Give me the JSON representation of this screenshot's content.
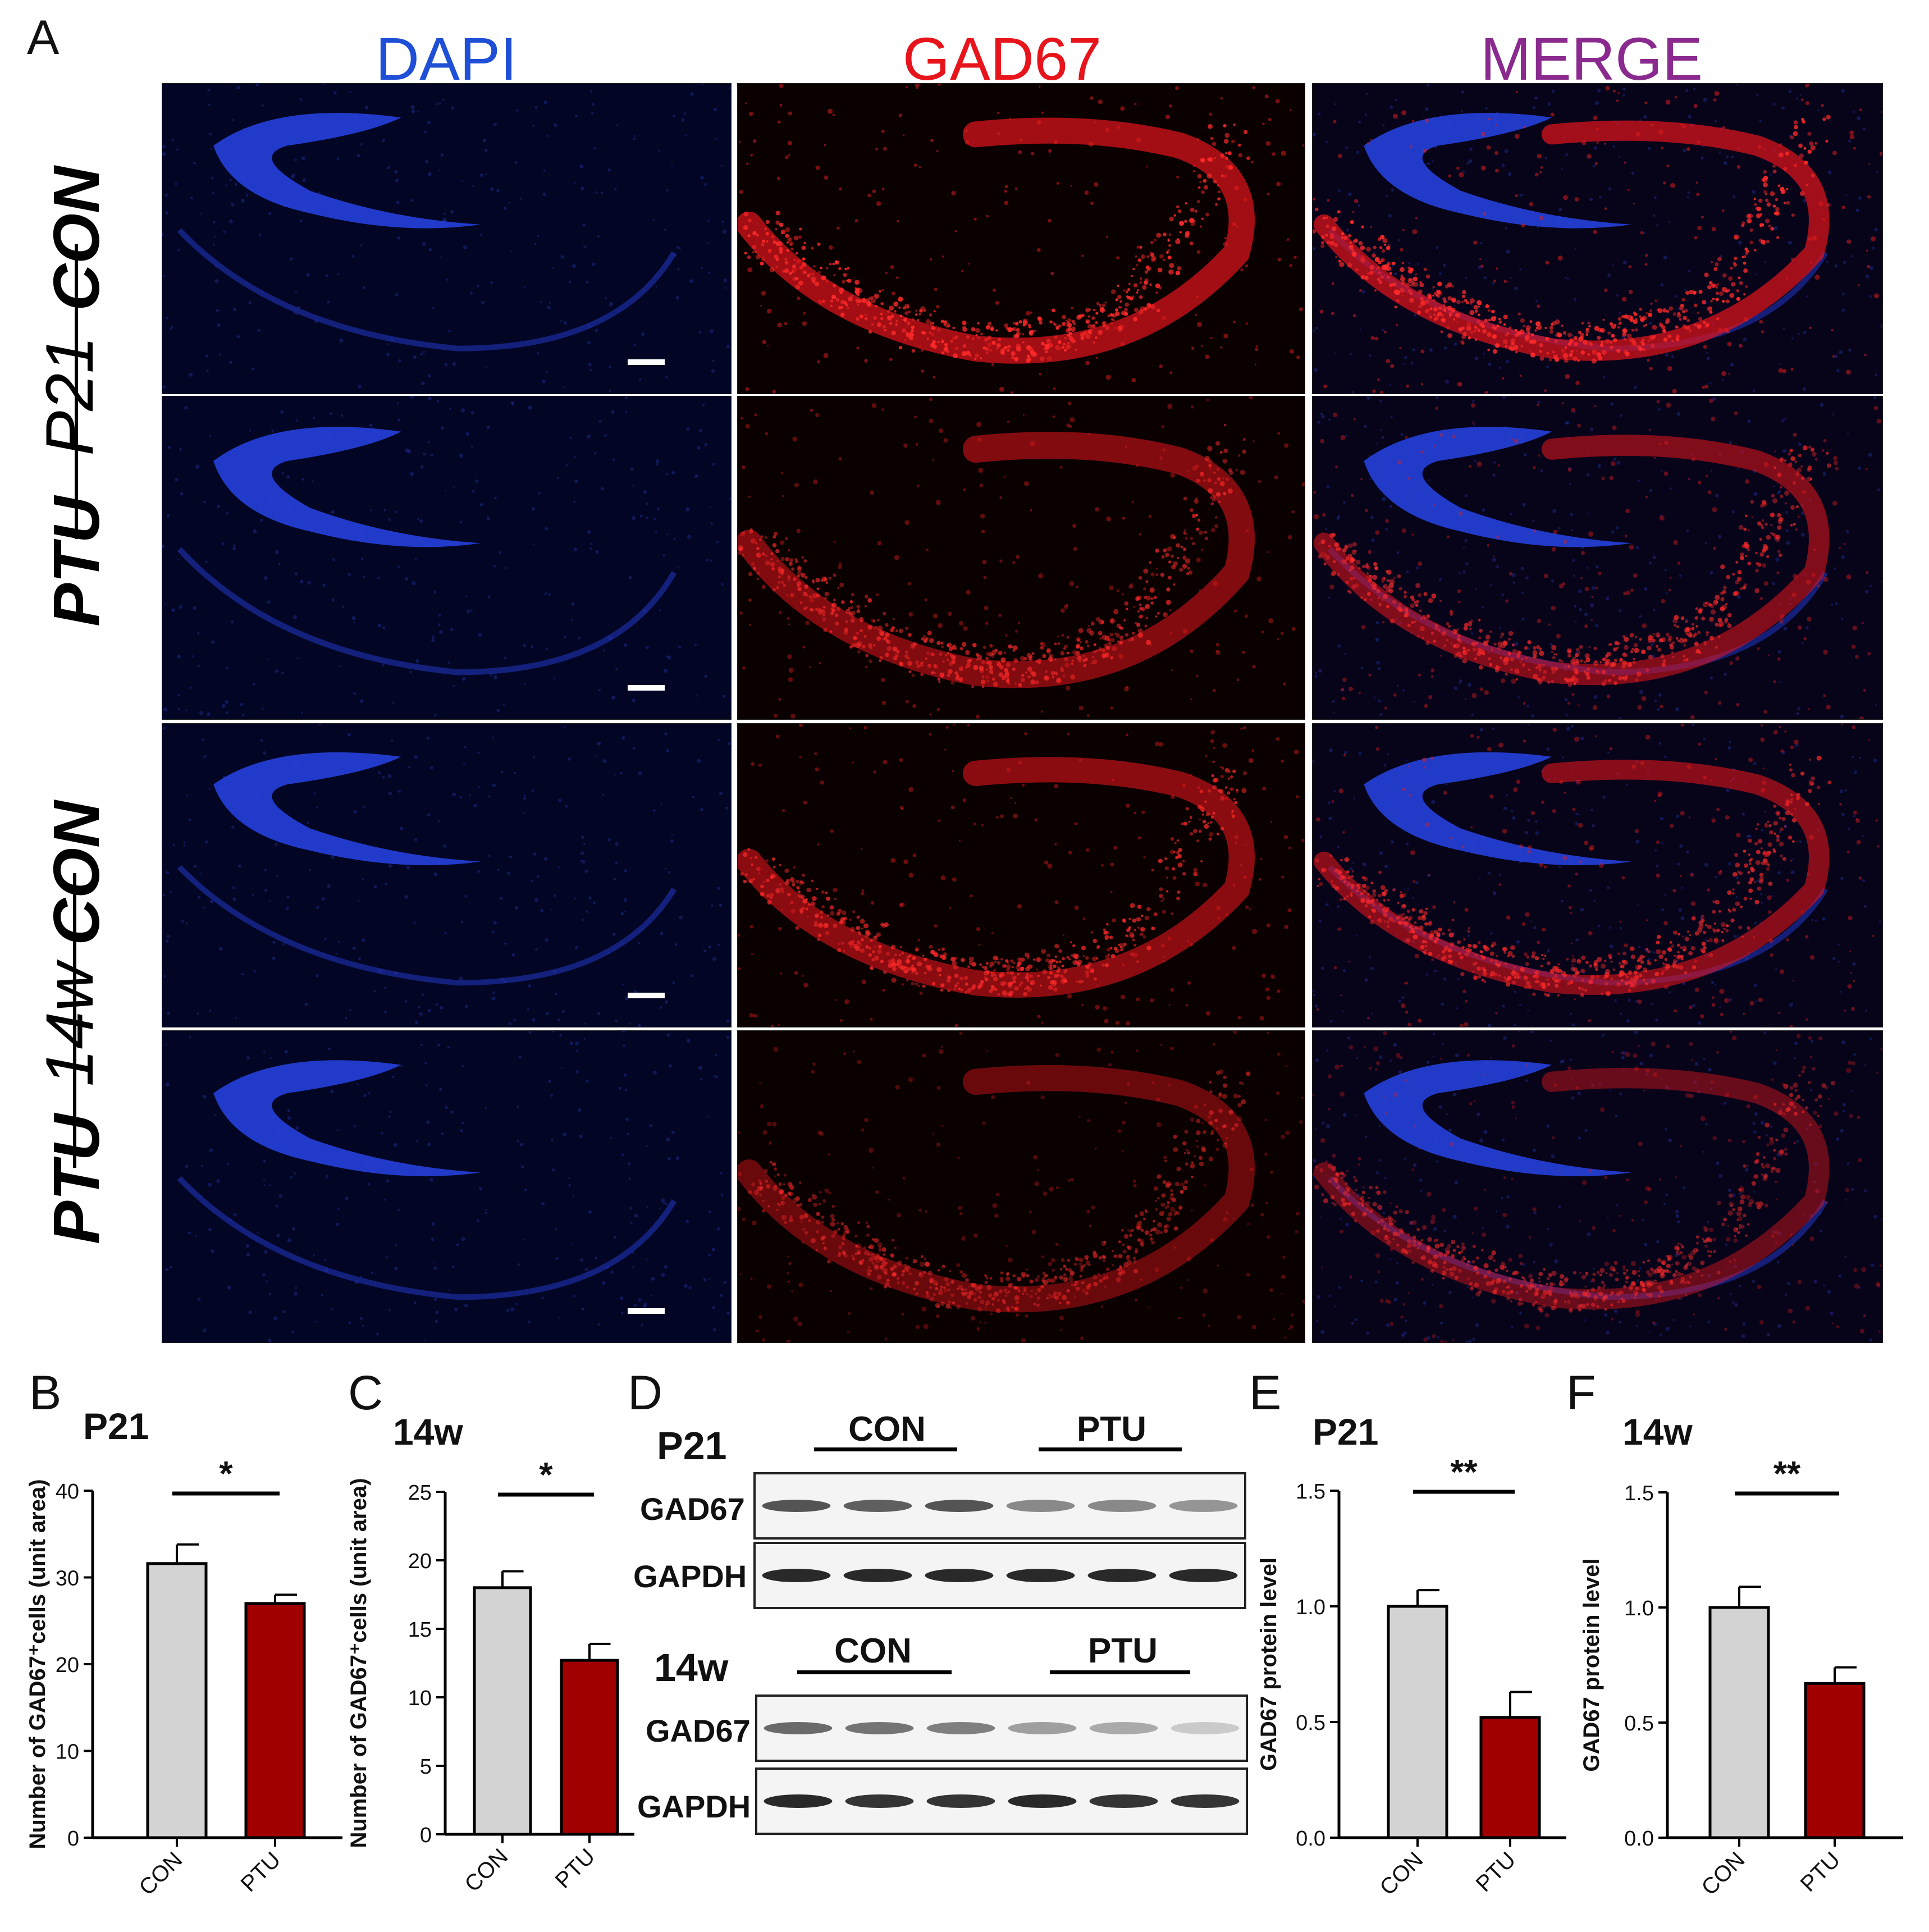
{
  "panel_letters": {
    "a": "A",
    "b": "B",
    "c": "C",
    "d": "D",
    "e": "E",
    "f": "F"
  },
  "column_titles": [
    {
      "label": "DAPI",
      "color": "#1f4fd6"
    },
    {
      "label": "GAD67",
      "color": "#e8141b"
    },
    {
      "label": "MERGE",
      "color": "#8a2a8e"
    }
  ],
  "row_labels": [
    "CON",
    "PTU",
    "CON",
    "PTU"
  ],
  "age_labels": [
    "P21",
    "14w"
  ],
  "micrograph_channels": [
    "dapi",
    "gad67",
    "merge"
  ],
  "charts": [
    {
      "id": "B",
      "chart_data": {
        "type": "bar",
        "title": "P21",
        "ylabel": "Number of GAD67⁺cells (unit area)",
        "categories": [
          "CON",
          "PTU"
        ],
        "values": [
          31.6,
          27.0
        ],
        "errors": [
          2.2,
          1.0
        ],
        "ylim": [
          0,
          40
        ],
        "yticks": [
          0,
          10,
          20,
          30,
          40
        ],
        "colors": [
          "#d3d3d3",
          "#a00000"
        ],
        "significance": "*"
      }
    },
    {
      "id": "C",
      "chart_data": {
        "type": "bar",
        "title": "14w",
        "ylabel": "Number of GAD67⁺cells (unit area)",
        "categories": [
          "CON",
          "PTU"
        ],
        "values": [
          18.0,
          12.7
        ],
        "errors": [
          1.2,
          1.2
        ],
        "ylim": [
          0,
          25
        ],
        "yticks": [
          0,
          5,
          10,
          15,
          20,
          25
        ],
        "colors": [
          "#d3d3d3",
          "#a00000"
        ],
        "significance": "*"
      }
    },
    {
      "id": "E",
      "chart_data": {
        "type": "bar",
        "title": "P21",
        "ylabel": "GAD67 protein level",
        "categories": [
          "CON",
          "PTU"
        ],
        "values": [
          1.0,
          0.52
        ],
        "errors": [
          0.07,
          0.11
        ],
        "ylim": [
          0,
          1.5
        ],
        "yticks": [
          0.0,
          0.5,
          1.0,
          1.5
        ],
        "ytick_labels": [
          "0.0",
          "0.5",
          "1.0",
          "1.5"
        ],
        "colors": [
          "#d3d3d3",
          "#a00000"
        ],
        "significance": "**"
      }
    },
    {
      "id": "F",
      "chart_data": {
        "type": "bar",
        "title": "14w",
        "ylabel": "GAD67 protein level",
        "categories": [
          "CON",
          "PTU"
        ],
        "values": [
          1.0,
          0.67
        ],
        "errors": [
          0.09,
          0.07
        ],
        "ylim": [
          0,
          1.5
        ],
        "yticks": [
          0.0,
          0.5,
          1.0,
          1.5
        ],
        "ytick_labels": [
          "0.0",
          "0.5",
          "1.0",
          "1.5"
        ],
        "colors": [
          "#d3d3d3",
          "#a00000"
        ],
        "significance": "**"
      }
    }
  ],
  "western": {
    "p21": {
      "title": "P21",
      "group1": "CON",
      "group2": "PTU",
      "band1": "GAD67",
      "band2": "GAPDH",
      "gad67_intensity": [
        0.8,
        0.75,
        0.8,
        0.55,
        0.55,
        0.5
      ],
      "gapdh_intensity": [
        1,
        1,
        1,
        1,
        1,
        1
      ]
    },
    "w14": {
      "title": "14w",
      "group1": "CON",
      "group2": "PTU",
      "band1": "GAD67",
      "band2": "GAPDH",
      "gad67_intensity": [
        0.7,
        0.65,
        0.6,
        0.45,
        0.4,
        0.25
      ],
      "gapdh_intensity": [
        1,
        0.95,
        0.95,
        1,
        0.95,
        0.95
      ]
    }
  }
}
